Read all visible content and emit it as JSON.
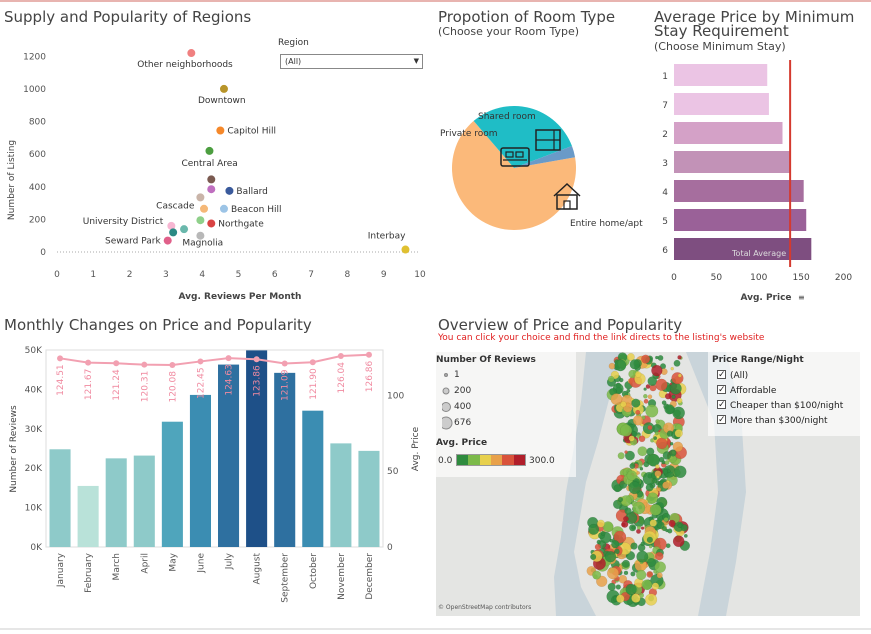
{
  "dashboard": {
    "supply": {
      "title": "Supply and Popularity of Regions",
      "xlabel": "Avg. Reviews Per Month",
      "ylabel": "Number of Listing",
      "region_filter_label": "Region",
      "region_filter_value": "(All)"
    },
    "room": {
      "title": "Propotion of Room Type",
      "subtitle": "(Choose your Room Type)"
    },
    "minstay": {
      "title_line1": "Average Price by Minimum",
      "title_line2": "Stay Requirement",
      "subtitle": "(Choose Minimum Stay)",
      "xlabel": "Avg. Price",
      "reference_label": "Total Average"
    },
    "monthly": {
      "title": "Monthly Changes on Price and Popularity",
      "ylabel_left": "Number of Reviews",
      "ylabel_right": "Avg. Price"
    },
    "overview": {
      "title": "Overview of Price and Popularity",
      "subtitle": "You can click your choice and find the link directs to the listing's website",
      "reviews_legend_title": "Number Of Reviews",
      "reviews_legend": [
        "1",
        "200",
        "400",
        "676"
      ],
      "price_legend_title": "Avg. Price",
      "price_min": "0.0",
      "price_max": "300.0",
      "price_range_title": "Price Range/Night",
      "price_range_options": [
        "(All)",
        "Affordable",
        "Cheaper than $100/night",
        "More than $300/night"
      ],
      "attribution": "© OpenStreetMap contributors"
    }
  },
  "colors": {
    "accent_line": "#e8b4b0",
    "reference_line": "#d43a2f",
    "price_line": "#f2a0b1",
    "price_scale": [
      "#2e8b3e",
      "#7cba4a",
      "#e7d04d",
      "#e8a14a",
      "#d9533b",
      "#b01e2a"
    ]
  },
  "chart_data": [
    {
      "type": "scatter",
      "title": "Supply and Popularity of Regions",
      "xlabel": "Avg. Reviews Per Month",
      "ylabel": "Number of Listing",
      "xlim": [
        0,
        10
      ],
      "ylim": [
        0,
        1300
      ],
      "xticks": [
        0,
        1,
        2,
        3,
        4,
        5,
        6,
        7,
        8,
        9,
        10
      ],
      "yticks": [
        0,
        200,
        400,
        600,
        800,
        1000,
        1200
      ],
      "points": [
        {
          "label": "Other neighborhoods",
          "x": 3.7,
          "y": 1220,
          "color": "#f08080"
        },
        {
          "label": "Downtown",
          "x": 4.6,
          "y": 1000,
          "color": "#b8952a"
        },
        {
          "label": "Capitol Hill",
          "x": 4.5,
          "y": 745,
          "color": "#f5882a"
        },
        {
          "label": "Central Area",
          "x": 4.2,
          "y": 620,
          "color": "#4c9e40"
        },
        {
          "label": "",
          "x": 4.25,
          "y": 445,
          "color": "#7a5a50"
        },
        {
          "label": "",
          "x": 4.25,
          "y": 385,
          "color": "#bf6fbf"
        },
        {
          "label": "Ballard",
          "x": 4.75,
          "y": 375,
          "color": "#3a5a9c"
        },
        {
          "label": "Cascade",
          "x": 3.95,
          "y": 335,
          "color": "#c9b4a8"
        },
        {
          "label": "",
          "x": 4.05,
          "y": 265,
          "color": "#f5b878"
        },
        {
          "label": "Beacon Hill",
          "x": 4.6,
          "y": 265,
          "color": "#9cc4e6"
        },
        {
          "label": "",
          "x": 3.95,
          "y": 195,
          "color": "#8fd08a"
        },
        {
          "label": "Northgate",
          "x": 4.25,
          "y": 175,
          "color": "#d94343"
        },
        {
          "label": "University District",
          "x": 3.15,
          "y": 160,
          "color": "#f7b6d2"
        },
        {
          "label": "",
          "x": 3.5,
          "y": 140,
          "color": "#6ab8ac"
        },
        {
          "label": "",
          "x": 3.2,
          "y": 120,
          "color": "#2a8a84"
        },
        {
          "label": "Magnolia",
          "x": 3.95,
          "y": 100,
          "color": "#b8b8b8"
        },
        {
          "label": "Seward Park",
          "x": 3.05,
          "y": 70,
          "color": "#e0608a"
        },
        {
          "label": "Interbay",
          "x": 9.6,
          "y": 15,
          "color": "#e0c030"
        }
      ]
    },
    {
      "type": "pie",
      "title": "Propotion of Room Type",
      "slices": [
        {
          "label": "Entire home/apt",
          "value": 66.5,
          "color": "#fbb97a"
        },
        {
          "label": "Private room",
          "value": 30.5,
          "color": "#1fbdc6"
        },
        {
          "label": "Shared room",
          "value": 3.0,
          "color": "#6a9ac8"
        }
      ]
    },
    {
      "type": "bar",
      "orientation": "horizontal",
      "title": "Average Price by Minimum Stay Requirement",
      "xlabel": "Avg. Price",
      "categories": [
        "1",
        "7",
        "2",
        "3",
        "4",
        "5",
        "6"
      ],
      "values": [
        110,
        112,
        128,
        137,
        153,
        156,
        162
      ],
      "xlim": [
        0,
        210
      ],
      "xticks": [
        0,
        50,
        100,
        150,
        200
      ],
      "reference_line": 137,
      "colors": [
        "#ebc4e4",
        "#ebc4e4",
        "#d4a1c7",
        "#c292b7",
        "#a66e9e",
        "#9a6198",
        "#7e4e80"
      ]
    },
    {
      "type": "bar",
      "title": "Monthly Changes on Price and Popularity",
      "xlabel": "",
      "ylabel": "Number of Reviews",
      "y2label": "Avg. Price",
      "categories": [
        "January",
        "February",
        "March",
        "April",
        "May",
        "June",
        "July",
        "August",
        "September",
        "October",
        "November",
        "December"
      ],
      "series": [
        {
          "name": "Number of Reviews",
          "values": [
            24800,
            15500,
            22500,
            23200,
            31800,
            38600,
            46300,
            49900,
            44200,
            34600,
            26300,
            24400
          ]
        },
        {
          "name": "Avg. Price",
          "values": [
            124.51,
            121.67,
            121.24,
            120.31,
            120.08,
            122.45,
            124.63,
            123.86,
            121.09,
            121.9,
            126.04,
            126.86
          ]
        }
      ],
      "ylim": [
        0,
        50000
      ],
      "y2lim": [
        0,
        130
      ],
      "yticks": [
        "0K",
        "10K",
        "20K",
        "30K",
        "40K",
        "50K"
      ],
      "y2ticks": [
        0,
        50,
        100
      ],
      "bar_colors": [
        "#8ecac9",
        "#b9e2d9",
        "#8ecac9",
        "#8ecac9",
        "#4fa5bc",
        "#3b8db2",
        "#2e70a0",
        "#1e5088",
        "#2e70a0",
        "#3b8db2",
        "#8ecac9",
        "#8ecac9"
      ]
    }
  ]
}
